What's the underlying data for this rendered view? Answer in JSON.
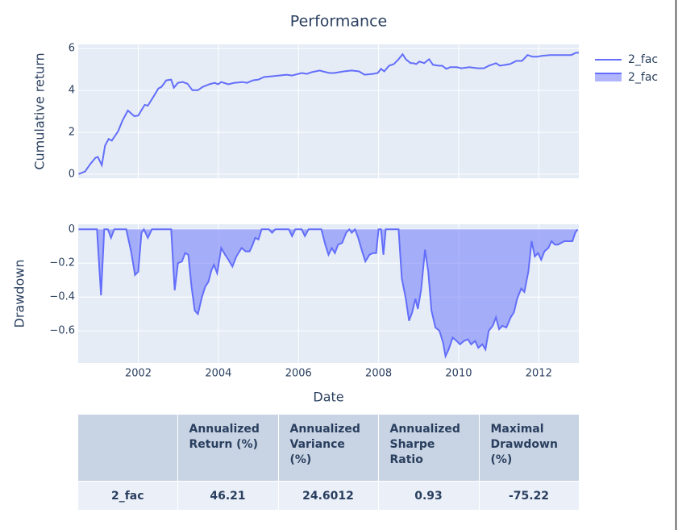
{
  "chart_data": [
    {
      "type": "line",
      "title": "Performance",
      "y_label": "Cumulative return",
      "xlim": [
        2000.5,
        2013.0
      ],
      "ylim": [
        -0.2,
        6.2
      ],
      "yticks": [
        0,
        2,
        4,
        6
      ],
      "grid": true,
      "x": [
        2000.51,
        2000.67,
        2000.81,
        2000.93,
        2000.99,
        2001.09,
        2001.17,
        2001.26,
        2001.34,
        2001.5,
        2001.6,
        2001.74,
        2001.9,
        2002.0,
        2002.1,
        2002.16,
        2002.24,
        2002.38,
        2002.5,
        2002.58,
        2002.7,
        2002.82,
        2002.89,
        2002.99,
        2003.11,
        2003.23,
        2003.35,
        2003.49,
        2003.61,
        2003.77,
        2003.91,
        2003.99,
        2004.07,
        2004.25,
        2004.39,
        2004.6,
        2004.72,
        2004.86,
        2005.0,
        2005.14,
        2005.3,
        2005.52,
        2005.7,
        2005.84,
        2006.08,
        2006.21,
        2006.33,
        2006.53,
        2006.61,
        2006.77,
        2006.89,
        2007.13,
        2007.33,
        2007.51,
        2007.65,
        2007.86,
        2007.98,
        2008.06,
        2008.14,
        2008.26,
        2008.38,
        2008.5,
        2008.6,
        2008.68,
        2008.8,
        2008.86,
        2008.94,
        2009.02,
        2009.14,
        2009.26,
        2009.36,
        2009.51,
        2009.59,
        2009.69,
        2009.79,
        2009.95,
        2010.07,
        2010.27,
        2010.47,
        2010.63,
        2010.75,
        2010.93,
        2011.03,
        2011.28,
        2011.44,
        2011.58,
        2011.72,
        2011.84,
        2011.96,
        2012.08,
        2012.28,
        2012.64,
        2012.81,
        2012.93,
        2013.0
      ],
      "series": [
        {
          "name": "2_fac",
          "color": "#636efa",
          "values": [
            0,
            0.12,
            0.5,
            0.78,
            0.82,
            0.43,
            1.36,
            1.68,
            1.6,
            2.06,
            2.53,
            3.04,
            2.77,
            2.8,
            3.12,
            3.31,
            3.27,
            3.7,
            4.09,
            4.17,
            4.48,
            4.52,
            4.13,
            4.36,
            4.4,
            4.32,
            4.01,
            4.01,
            4.17,
            4.29,
            4.36,
            4.29,
            4.4,
            4.29,
            4.36,
            4.4,
            4.36,
            4.48,
            4.52,
            4.64,
            4.67,
            4.71,
            4.75,
            4.71,
            4.83,
            4.79,
            4.87,
            4.95,
            4.91,
            4.83,
            4.83,
            4.91,
            4.95,
            4.91,
            4.75,
            4.79,
            4.83,
            5.03,
            4.91,
            5.18,
            5.26,
            5.49,
            5.73,
            5.49,
            5.3,
            5.3,
            5.26,
            5.38,
            5.3,
            5.49,
            5.22,
            5.18,
            5.18,
            5.03,
            5.11,
            5.11,
            5.06,
            5.11,
            5.06,
            5.06,
            5.18,
            5.3,
            5.18,
            5.26,
            5.41,
            5.41,
            5.69,
            5.61,
            5.61,
            5.65,
            5.69,
            5.69,
            5.69,
            5.8,
            5.8
          ]
        }
      ]
    },
    {
      "type": "area",
      "y_label": "Drawdown",
      "x_label": "Date",
      "xlim": [
        2000.5,
        2013.0
      ],
      "xticks": [
        2002,
        2004,
        2006,
        2008,
        2010,
        2012
      ],
      "ylim": [
        -0.79,
        0.03
      ],
      "yticks": [
        0,
        {
          "value": -0.2,
          "label": "−0.2"
        },
        {
          "value": -0.4,
          "label": "−0.4"
        },
        {
          "value": -0.6,
          "label": "−0.6"
        }
      ],
      "grid": true,
      "x": [
        2000.51,
        2000.97,
        2001.07,
        2001.15,
        2001.24,
        2001.32,
        2001.4,
        2001.7,
        2001.82,
        2001.92,
        2002.0,
        2002.08,
        2002.14,
        2002.24,
        2002.34,
        2002.82,
        2002.91,
        2002.99,
        2003.09,
        2003.17,
        2003.25,
        2003.33,
        2003.41,
        2003.49,
        2003.59,
        2003.67,
        2003.75,
        2003.83,
        2003.89,
        2003.97,
        2004.07,
        2004.17,
        2004.25,
        2004.35,
        2004.45,
        2004.58,
        2004.68,
        2004.78,
        2004.84,
        2004.92,
        2005.0,
        2005.08,
        2005.26,
        2005.34,
        2005.42,
        2005.76,
        2005.84,
        2005.92,
        2006.08,
        2006.16,
        2006.25,
        2006.57,
        2006.67,
        2006.75,
        2006.83,
        2006.91,
        2006.99,
        2007.09,
        2007.19,
        2007.27,
        2007.33,
        2007.41,
        2007.49,
        2007.59,
        2007.67,
        2007.77,
        2007.86,
        2007.94,
        2008.0,
        2008.06,
        2008.12,
        2008.18,
        2008.5,
        2008.58,
        2008.68,
        2008.76,
        2008.84,
        2008.92,
        2008.98,
        2009.06,
        2009.16,
        2009.24,
        2009.32,
        2009.42,
        2009.52,
        2009.61,
        2009.67,
        2009.75,
        2009.85,
        2009.95,
        2010.03,
        2010.13,
        2010.23,
        2010.31,
        2010.41,
        2010.49,
        2010.59,
        2010.67,
        2010.75,
        2010.85,
        2010.93,
        2011.01,
        2011.09,
        2011.19,
        2011.3,
        2011.38,
        2011.46,
        2011.56,
        2011.64,
        2011.74,
        2011.82,
        2011.9,
        2011.98,
        2012.06,
        2012.14,
        2012.24,
        2012.32,
        2012.4,
        2012.48,
        2012.56,
        2012.64,
        2012.84,
        2012.91,
        2012.97
      ],
      "series": [
        {
          "name": "2_fac",
          "color": "#636efa",
          "fill": "rgba(99,110,250,0.5)",
          "values": [
            0,
            0,
            -0.39,
            0,
            0,
            -0.05,
            0,
            0,
            -0.13,
            -0.27,
            -0.25,
            -0.02,
            0,
            -0.05,
            0,
            0,
            -0.36,
            -0.2,
            -0.19,
            -0.14,
            -0.15,
            -0.34,
            -0.48,
            -0.5,
            -0.4,
            -0.34,
            -0.31,
            -0.24,
            -0.21,
            -0.26,
            -0.11,
            -0.15,
            -0.18,
            -0.22,
            -0.16,
            -0.11,
            -0.13,
            -0.13,
            -0.1,
            -0.05,
            -0.06,
            0,
            0,
            -0.02,
            0,
            0,
            -0.04,
            0,
            0,
            -0.04,
            0,
            0,
            -0.09,
            -0.15,
            -0.11,
            -0.14,
            -0.09,
            -0.08,
            -0.02,
            0,
            -0.02,
            0,
            -0.05,
            -0.13,
            -0.19,
            -0.15,
            -0.14,
            -0.14,
            0,
            0,
            -0.15,
            0,
            0,
            -0.29,
            -0.41,
            -0.54,
            -0.49,
            -0.41,
            -0.47,
            -0.36,
            -0.12,
            -0.25,
            -0.48,
            -0.58,
            -0.6,
            -0.67,
            -0.75,
            -0.71,
            -0.64,
            -0.66,
            -0.68,
            -0.66,
            -0.65,
            -0.68,
            -0.66,
            -0.7,
            -0.68,
            -0.71,
            -0.6,
            -0.57,
            -0.52,
            -0.59,
            -0.57,
            -0.58,
            -0.52,
            -0.49,
            -0.41,
            -0.35,
            -0.37,
            -0.25,
            -0.07,
            -0.16,
            -0.14,
            -0.18,
            -0.13,
            -0.11,
            -0.07,
            -0.09,
            -0.09,
            -0.08,
            -0.07,
            -0.07,
            -0.02,
            0
          ]
        }
      ]
    }
  ],
  "table": {
    "header": [
      "Annualized Return (%)",
      "Annualized Variance (%)",
      "Annualized Sharpe Ratio",
      "Maximal Drawdown (%)"
    ],
    "rows": [
      [
        "2_fac",
        46.21,
        24.6012,
        0.93,
        -75.22
      ]
    ]
  }
}
